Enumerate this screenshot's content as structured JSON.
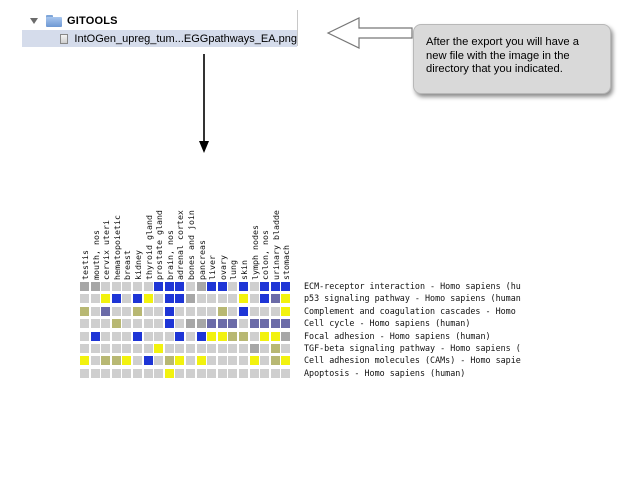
{
  "finder": {
    "folder_name": "GITOOLS",
    "file_name": "IntOGen_upreg_tum...EGGpathways_EA.png"
  },
  "callout": {
    "text": "After the export you will have a new file with the image in the directory that you indicated."
  },
  "colors": {
    "blue": "#1e35d6",
    "yellow": "#f2f20e",
    "light_gray": "#cfcfcf",
    "gray": "#a7a7a7",
    "olive": "#b8b873",
    "purple_gray": "#6b6ba8",
    "light_yellow": "#f0f08a"
  },
  "heatmap": {
    "columns": [
      "testis",
      "mouth, nos",
      "cervix uteri",
      "hematopoietic",
      "breast",
      "kidney",
      "thyroid gland",
      "prostate gland",
      "brain, nos",
      "adrenal cortex",
      "bones and join",
      "pancreas",
      "liver",
      "ovary",
      "lung",
      "skin",
      "lymph nodes",
      "colon, nos",
      "urinary bladde",
      "stomach"
    ],
    "rows": [
      {
        "label": "ECM-receptor interaction - Homo sapiens (hu",
        "cells": [
          "G",
          "G",
          "L",
          "L",
          "L",
          "L",
          "L",
          "B",
          "B",
          "B",
          "L",
          "G",
          "B",
          "B",
          "L",
          "B",
          "L",
          "B",
          "B",
          "B"
        ]
      },
      {
        "label": "p53 signaling pathway - Homo sapiens (human",
        "cells": [
          "L",
          "L",
          "Y",
          "B",
          "L",
          "B",
          "Y",
          "L",
          "B",
          "B",
          "G",
          "L",
          "L",
          "L",
          "L",
          "Y",
          "L",
          "B",
          "P",
          "Y"
        ]
      },
      {
        "label": "Complement and coagulation cascades - Homo ",
        "cells": [
          "O",
          "L",
          "P",
          "L",
          "L",
          "O",
          "L",
          "L",
          "B",
          "L",
          "L",
          "L",
          "L",
          "O",
          "L",
          "B",
          "L",
          "L",
          "L",
          "Y"
        ]
      },
      {
        "label": "Cell cycle - Homo sapiens (human)",
        "cells": [
          "L",
          "L",
          "L",
          "O",
          "L",
          "L",
          "L",
          "L",
          "B",
          "L",
          "G",
          "G",
          "P",
          "P",
          "P",
          "L",
          "P",
          "P",
          "P",
          "P"
        ]
      },
      {
        "label": "Focal adhesion - Homo sapiens (human)",
        "cells": [
          "L",
          "B",
          "L",
          "L",
          "L",
          "B",
          "L",
          "L",
          "L",
          "B",
          "L",
          "B",
          "Y",
          "Y",
          "O",
          "O",
          "L",
          "Y",
          "Y",
          "G"
        ]
      },
      {
        "label": "TGF-beta signaling pathway - Homo sapiens (",
        "cells": [
          "L",
          "L",
          "L",
          "L",
          "L",
          "L",
          "L",
          "Y",
          "L",
          "L",
          "L",
          "L",
          "L",
          "L",
          "L",
          "L",
          "G",
          "L",
          "O",
          "L"
        ]
      },
      {
        "label": "Cell adhesion molecules (CAMs) - Homo sapie",
        "cells": [
          "Y",
          "L",
          "O",
          "O",
          "Y",
          "L",
          "B",
          "L",
          "O",
          "Y",
          "L",
          "Y",
          "L",
          "L",
          "L",
          "L",
          "Y",
          "L",
          "O",
          "Y"
        ]
      },
      {
        "label": "Apoptosis - Homo sapiens (human)",
        "cells": [
          "L",
          "L",
          "L",
          "L",
          "L",
          "L",
          "L",
          "L",
          "Y",
          "L",
          "L",
          "L",
          "L",
          "L",
          "L",
          "L",
          "L",
          "L",
          "L",
          "L"
        ]
      }
    ]
  }
}
